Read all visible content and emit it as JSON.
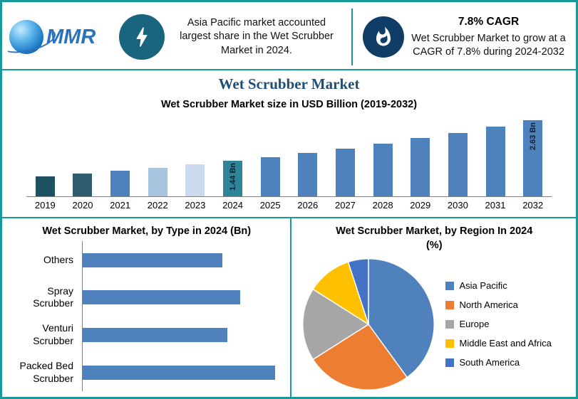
{
  "header": {
    "logo_text": "MMR",
    "left_text": "Asia Pacific market accounted largest share in the Wet Scrubber Market in 2024.",
    "cagr_title": "7.8% CAGR",
    "right_text": "Wet Scrubber Market to grow at a CAGR of 7.8% during 2024-2032"
  },
  "title": "Wet Scrubber Market",
  "icons": {
    "left_badge": "lightning-bolt",
    "right_badge": "flame",
    "logo": "globe"
  },
  "colors": {
    "frame_teal": "#189a9a",
    "title_blue": "#1f4e79",
    "bar_blue": "#4F81BD",
    "teal_circle": "#19647e",
    "navy_circle": "#103d66"
  },
  "chart_data": [
    {
      "type": "bar",
      "title": "Wet Scrubber Market size in USD Billion (2019-2032)",
      "categories": [
        "2019",
        "2020",
        "2021",
        "2022",
        "2023",
        "2024",
        "2025",
        "2026",
        "2027",
        "2028",
        "2029",
        "2030",
        "2031",
        "2032"
      ],
      "values": [
        0.99,
        1.07,
        1.15,
        1.24,
        1.34,
        1.44,
        1.55,
        1.67,
        1.8,
        1.95,
        2.1,
        2.26,
        2.44,
        2.63
      ],
      "unit": "USD Billion",
      "data_labels": {
        "2024": "1.44 Bn",
        "2032": "2.63 Bn"
      },
      "bar_colors": [
        "#1d5161",
        "#2f5d6e",
        "#4f81bd",
        "#a9c4de",
        "#cbdaec",
        "#2e8597",
        "#4f81bd",
        "#4f81bd",
        "#4f81bd",
        "#4f81bd",
        "#4f81bd",
        "#4f81bd",
        "#4f81bd",
        "#4f81bd"
      ],
      "grid": false,
      "xlabel": "",
      "ylabel": ""
    },
    {
      "type": "bar",
      "orientation": "horizontal",
      "title": "Wet Scrubber Market, by Type in 2024 (Bn)",
      "categories": [
        "Others",
        "Spray Scrubber",
        "Venturi Scrubber",
        "Packed Bed Scrubber"
      ],
      "values": [
        0.32,
        0.36,
        0.33,
        0.44
      ],
      "color": "#4F81BD",
      "grid": false
    },
    {
      "type": "pie",
      "title": "Wet Scrubber Market, by Region In 2024 (%)",
      "labels": [
        "Asia Pacific",
        "North America",
        "Europe",
        "Middle East and Africa",
        "South America"
      ],
      "values": [
        40,
        26,
        18,
        11,
        5
      ],
      "colors": [
        "#4F81BD",
        "#ED7D31",
        "#A6A6A6",
        "#FFC000",
        "#4472C4"
      ],
      "legend_position": "right"
    }
  ]
}
